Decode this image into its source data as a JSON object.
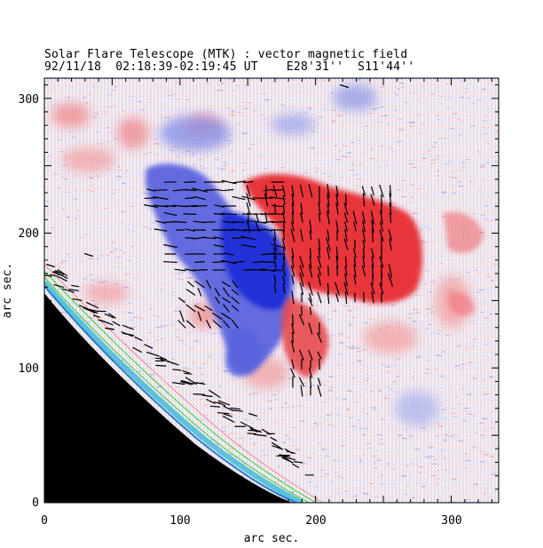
{
  "header": {
    "title": "Solar Flare Telescope (MTK) : vector magnetic field",
    "subtitle": "92/11/18  02:18:39-02:19:45 UT    E28'31''  S11'44''"
  },
  "axes": {
    "xlabel": "arc sec.",
    "ylabel": "arc sec.",
    "x_ticks": [
      "0",
      "100",
      "200",
      "300"
    ],
    "y_ticks": [
      "0",
      "100",
      "200",
      "300"
    ],
    "xlim": [
      0,
      335
    ],
    "ylim": [
      0,
      315
    ]
  },
  "colors": {
    "positive_polarity": "#e8353a",
    "negative_polarity": "#3a46e0",
    "background_noise_blue": "#8c97e6",
    "background_noise_red": "#ef8a8c",
    "limb_green": "#2fd12f",
    "limb_cyan": "#3ab7d6",
    "off_disk": "#000000",
    "vectors": "#000000"
  }
}
